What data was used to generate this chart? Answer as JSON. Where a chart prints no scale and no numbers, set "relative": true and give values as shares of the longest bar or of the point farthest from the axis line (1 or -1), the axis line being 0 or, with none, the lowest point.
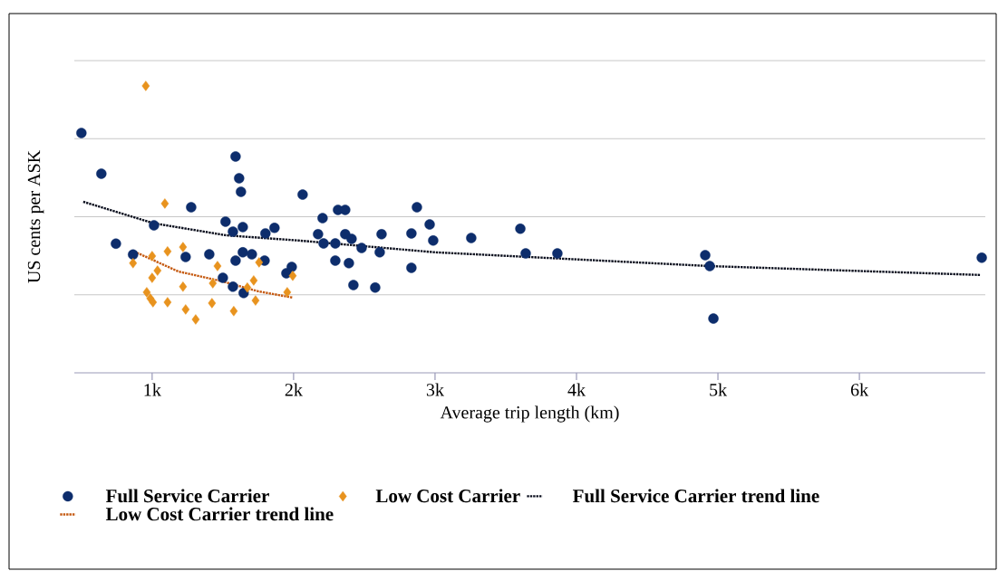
{
  "chart_data": {
    "type": "scatter",
    "relative": true,
    "xlabel": "Average trip length (km)",
    "ylabel": "US cents per ASK",
    "xlim": [
      450,
      6890
    ],
    "xticks": [
      {
        "value": 1000,
        "label": "1k"
      },
      {
        "value": 2000,
        "label": "2k"
      },
      {
        "value": 3000,
        "label": "3k"
      },
      {
        "value": 4000,
        "label": "4k"
      },
      {
        "value": 5000,
        "label": "5k"
      },
      {
        "value": 6000,
        "label": "6k"
      }
    ],
    "grid": "y",
    "legend": "bottom",
    "series": [
      {
        "name": "Full Service Carrier",
        "marker": "circle",
        "color": "#0d2d6c",
        "x": [
          500,
          641,
          744,
          865,
          1013,
          1237,
          1276,
          1404,
          1500,
          1519,
          1571,
          1647,
          1590,
          1615,
          1628,
          1571,
          1641,
          1590,
          1641,
          1705,
          1795,
          1801,
          1865,
          2064,
          1949,
          1987,
          2173,
          2205,
          2314,
          2365,
          2212,
          2295,
          2365,
          2410,
          2481,
          2295,
          2391,
          2423,
          2577,
          2622,
          2609,
          2872,
          2962,
          2987,
          2833,
          2833,
          3256,
          3603,
          3641,
          3865,
          4910,
          4942,
          4968,
          6865
        ],
        "values": [
          0.836,
          0.694,
          0.45,
          0.412,
          0.514,
          0.404,
          0.577,
          0.413,
          0.331,
          0.527,
          0.3,
          0.278,
          0.754,
          0.678,
          0.631,
          0.492,
          0.508,
          0.391,
          0.42,
          0.413,
          0.391,
          0.486,
          0.505,
          0.621,
          0.347,
          0.369,
          0.483,
          0.539,
          0.568,
          0.568,
          0.451,
          0.451,
          0.483,
          0.467,
          0.435,
          0.391,
          0.382,
          0.306,
          0.297,
          0.483,
          0.42,
          0.577,
          0.517,
          0.461,
          0.486,
          0.366,
          0.47,
          0.502,
          0.416,
          0.416,
          0.41,
          0.372,
          0.189,
          0.401
        ]
      },
      {
        "name": "Low Cost Carrier",
        "marker": "diamond",
        "color": "#e8931e",
        "x": [
          955,
          1090,
          865,
          1000,
          1109,
          1218,
          1038,
          1000,
          962,
          987,
          1006,
          1109,
          1218,
          1237,
          1308,
          1462,
          1429,
          1423,
          1577,
          1673,
          1718,
          1731,
          1756,
          1994,
          1955
        ],
        "values": [
          1.0,
          0.59,
          0.382,
          0.407,
          0.423,
          0.438,
          0.356,
          0.331,
          0.281,
          0.259,
          0.246,
          0.246,
          0.3,
          0.221,
          0.186,
          0.372,
          0.312,
          0.243,
          0.215,
          0.297,
          0.322,
          0.252,
          0.385,
          0.338,
          0.281
        ]
      },
      {
        "name": "Full Service Carrier trend line",
        "type": "line",
        "marker": "none",
        "line_style": "dotted",
        "color": "#0b0f1e",
        "x": [
          513,
          1013,
          1526,
          2038,
          3000,
          3769,
          4942,
          6853
        ],
        "values": [
          0.596,
          0.521,
          0.479,
          0.461,
          0.42,
          0.401,
          0.372,
          0.341
        ]
      },
      {
        "name": "Low Cost Carrier trend line",
        "type": "line",
        "marker": "none",
        "line_style": "dotted",
        "color": "#c55a11",
        "x": [
          872,
          1186,
          1494,
          1750,
          1994
        ],
        "values": [
          0.423,
          0.353,
          0.319,
          0.284,
          0.262
        ]
      }
    ]
  }
}
